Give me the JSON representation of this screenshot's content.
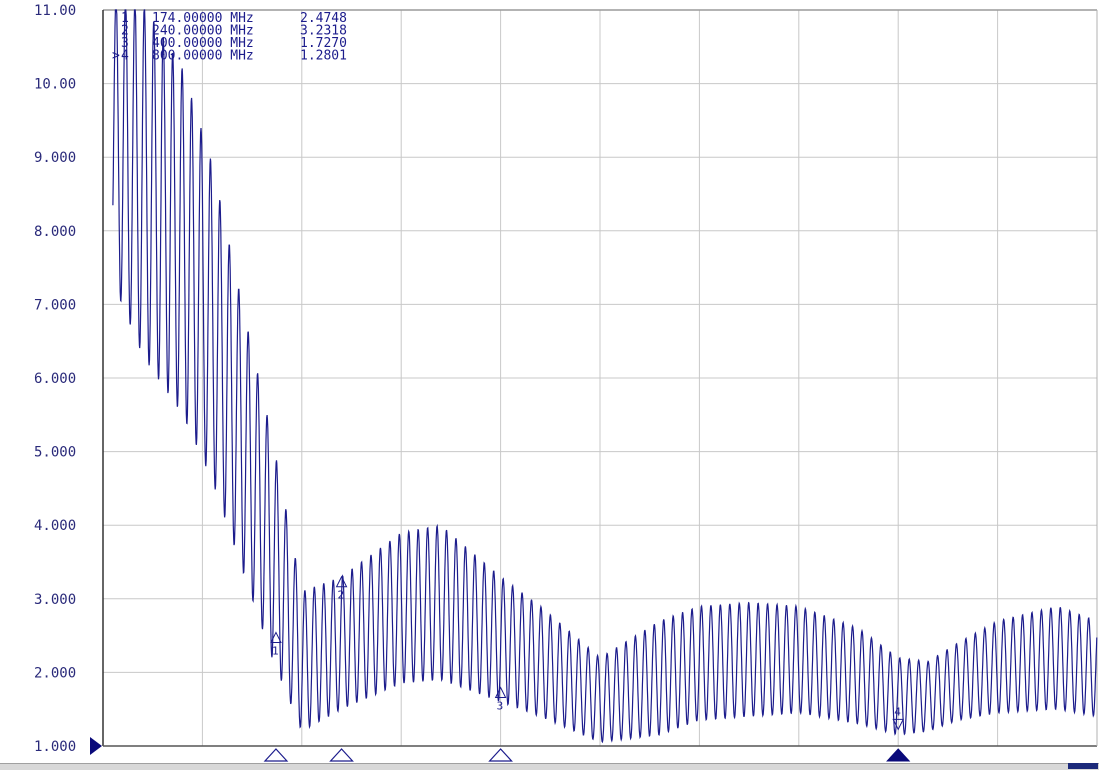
{
  "chart_data": {
    "type": "line",
    "title": "",
    "xlabel": "",
    "ylabel": "",
    "ylim": [
      1.0,
      11.0
    ],
    "yticks": [
      "11.00",
      "10.00",
      "9.000",
      "8.000",
      "7.000",
      "6.000",
      "5.000",
      "4.000",
      "3.000",
      "2.000",
      "1.000"
    ],
    "x_unit": "MHz",
    "xlim": [
      0,
      1000
    ],
    "x_divisions": 10,
    "grid": true,
    "legend": "none",
    "colors": {
      "trace": "#1c1c8c",
      "grid": "#c8c8c8",
      "axis_text": "#2a2a7a",
      "ref_marker": "#0a0a7a"
    },
    "markers": [
      {
        "index": "1",
        "active_symbol": "",
        "freq": "174.00000 MHz",
        "value": "2.4748",
        "x": 174,
        "y": 2.4748
      },
      {
        "index": "2",
        "active_symbol": "",
        "freq": "240.00000 MHz",
        "value": "3.2318",
        "x": 240,
        "y": 3.2318
      },
      {
        "index": "3",
        "active_symbol": "",
        "freq": "400.00000 MHz",
        "value": "1.7270",
        "x": 400,
        "y": 1.727
      },
      {
        "index": "4",
        "active_symbol": ">",
        "freq": "800.00000 MHz",
        "value": "1.2801",
        "x": 800,
        "y": 1.2801
      }
    ],
    "series": [
      {
        "envelope_x": [
          10,
          40,
          80,
          110,
          140,
          170,
          200,
          240,
          300,
          340,
          400,
          440,
          500,
          560,
          600,
          650,
          700,
          760,
          800,
          830,
          860,
          900,
          960,
          1000
        ],
        "envelope_upper": [
          11.2,
          11.1,
          10.2,
          8.9,
          7.0,
          5.2,
          3.1,
          3.3,
          3.9,
          4.0,
          3.3,
          2.9,
          2.2,
          2.7,
          2.9,
          2.95,
          2.9,
          2.6,
          2.2,
          2.15,
          2.4,
          2.7,
          2.9,
          2.7
        ],
        "envelope_lower": [
          7.3,
          6.3,
          5.5,
          4.6,
          3.4,
          2.2,
          1.2,
          1.5,
          1.85,
          1.9,
          1.6,
          1.4,
          1.05,
          1.15,
          1.35,
          1.4,
          1.45,
          1.3,
          1.15,
          1.2,
          1.35,
          1.45,
          1.5,
          1.4
        ],
        "period": 9.5,
        "phase": 3.9
      }
    ]
  }
}
